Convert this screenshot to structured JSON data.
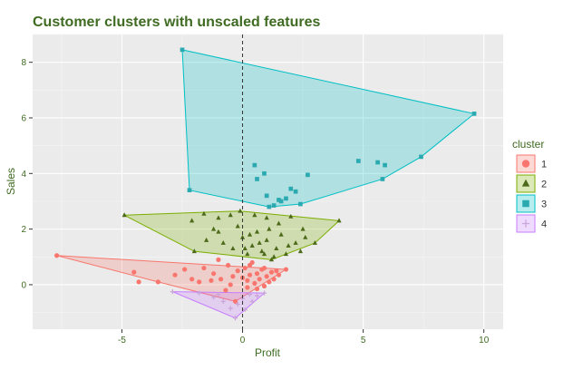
{
  "chart_data": {
    "type": "scatter",
    "title": "Customer clusters with unscaled features",
    "xlabel": "Profit",
    "ylabel": "Sales",
    "xlim": [
      -8.7,
      10.8
    ],
    "ylim": [
      -1.6,
      9.0
    ],
    "x_ticks": [
      -5,
      0,
      5,
      10
    ],
    "y_ticks": [
      0,
      2,
      4,
      6,
      8
    ],
    "grid": true,
    "reference_line": {
      "x": 0,
      "style": "dashed"
    },
    "legend": {
      "title": "cluster",
      "position": "right"
    },
    "series": [
      {
        "name": "1",
        "color": "#F8766D",
        "shape": "circle",
        "hull": [
          [
            -7.7,
            1.05
          ],
          [
            1.8,
            0.55
          ],
          [
            -0.3,
            -0.6
          ],
          [
            -3.5,
            0.1
          ]
        ],
        "points": [
          [
            -7.7,
            1.05
          ],
          [
            -4.3,
            0.1
          ],
          [
            -3.5,
            0.1
          ],
          [
            -4.5,
            0.45
          ],
          [
            -2.8,
            0.35
          ],
          [
            -2.1,
            0.2
          ],
          [
            -1.6,
            0.6
          ],
          [
            -1.2,
            0.4
          ],
          [
            -0.9,
            0.2
          ],
          [
            -0.6,
            0.7
          ],
          [
            -0.5,
            0.0
          ],
          [
            -0.3,
            -0.6
          ],
          [
            -0.2,
            0.5
          ],
          [
            0.0,
            0.25
          ],
          [
            0.1,
            0.6
          ],
          [
            0.2,
            -0.1
          ],
          [
            0.3,
            0.35
          ],
          [
            0.4,
            0.8
          ],
          [
            0.5,
            0.05
          ],
          [
            0.6,
            0.4
          ],
          [
            0.7,
            0.2
          ],
          [
            0.8,
            0.55
          ],
          [
            0.9,
            -0.05
          ],
          [
            1.0,
            0.3
          ],
          [
            1.1,
            0.1
          ],
          [
            1.2,
            0.45
          ],
          [
            1.3,
            0.2
          ],
          [
            1.5,
            0.35
          ],
          [
            1.8,
            0.55
          ],
          [
            -1.0,
            0.9
          ],
          [
            -0.4,
            0.3
          ],
          [
            0.2,
            0.15
          ],
          [
            0.6,
            -0.15
          ],
          [
            -1.8,
            0.1
          ],
          [
            -0.7,
            -0.2
          ],
          [
            0.3,
            0.7
          ],
          [
            0.9,
            0.6
          ],
          [
            1.4,
            0.5
          ],
          [
            -2.4,
            0.55
          ],
          [
            -1.3,
            0.15
          ]
        ]
      },
      {
        "name": "2",
        "color": "#7CAE00",
        "shape": "triangle",
        "hull": [
          [
            -4.9,
            2.5
          ],
          [
            -0.1,
            2.65
          ],
          [
            4.0,
            2.3
          ],
          [
            3.0,
            1.5
          ],
          [
            1.2,
            0.9
          ],
          [
            -2.0,
            1.2
          ]
        ],
        "points": [
          [
            -4.9,
            2.5
          ],
          [
            -2.1,
            2.3
          ],
          [
            -1.6,
            2.55
          ],
          [
            -1.0,
            2.4
          ],
          [
            -0.5,
            2.5
          ],
          [
            -0.1,
            2.65
          ],
          [
            0.5,
            2.5
          ],
          [
            1.0,
            2.4
          ],
          [
            1.5,
            2.2
          ],
          [
            2.0,
            2.45
          ],
          [
            2.5,
            2.0
          ],
          [
            3.0,
            1.5
          ],
          [
            4.0,
            2.3
          ],
          [
            -2.0,
            1.2
          ],
          [
            -1.5,
            1.6
          ],
          [
            -1.0,
            1.9
          ],
          [
            -0.4,
            1.3
          ],
          [
            0.0,
            1.7
          ],
          [
            0.2,
            1.1
          ],
          [
            0.4,
            1.4
          ],
          [
            0.6,
            1.9
          ],
          [
            0.8,
            1.2
          ],
          [
            1.0,
            1.6
          ],
          [
            1.2,
            0.9
          ],
          [
            1.4,
            1.3
          ],
          [
            1.6,
            1.8
          ],
          [
            1.8,
            1.1
          ],
          [
            2.2,
            1.5
          ],
          [
            2.6,
            1.7
          ],
          [
            -0.8,
            1.5
          ],
          [
            -0.2,
            2.1
          ],
          [
            0.3,
            1.8
          ],
          [
            0.7,
            1.5
          ],
          [
            1.1,
            2.0
          ],
          [
            1.3,
            1.0
          ],
          [
            1.9,
            1.4
          ],
          [
            0.1,
            1.3
          ],
          [
            0.9,
            1.1
          ],
          [
            -1.2,
            2.0
          ],
          [
            2.4,
            1.2
          ]
        ]
      },
      {
        "name": "3",
        "color": "#00BFC4",
        "shape": "square",
        "hull": [
          [
            -2.5,
            8.45
          ],
          [
            9.6,
            6.15
          ],
          [
            7.4,
            4.6
          ],
          [
            5.8,
            3.8
          ],
          [
            2.4,
            2.9
          ],
          [
            1.1,
            2.8
          ],
          [
            -2.2,
            3.4
          ]
        ],
        "points": [
          [
            -2.5,
            8.45
          ],
          [
            9.6,
            6.15
          ],
          [
            7.4,
            4.6
          ],
          [
            5.8,
            3.8
          ],
          [
            2.4,
            2.9
          ],
          [
            1.1,
            2.8
          ],
          [
            -2.2,
            3.4
          ],
          [
            0.5,
            4.3
          ],
          [
            0.6,
            3.8
          ],
          [
            1.0,
            3.2
          ],
          [
            1.3,
            2.85
          ],
          [
            1.6,
            3.0
          ],
          [
            1.8,
            3.1
          ],
          [
            2.0,
            3.45
          ],
          [
            2.2,
            3.35
          ],
          [
            2.7,
            3.95
          ],
          [
            4.8,
            4.45
          ],
          [
            5.6,
            4.4
          ],
          [
            5.9,
            4.3
          ],
          [
            0.9,
            4.0
          ],
          [
            1.5,
            3.05
          ]
        ]
      },
      {
        "name": "4",
        "color": "#C77CFF",
        "shape": "cross",
        "hull": [
          [
            -2.9,
            -0.25
          ],
          [
            0.9,
            -0.3
          ],
          [
            -0.3,
            -1.2
          ]
        ],
        "points": [
          [
            -2.9,
            -0.25
          ],
          [
            -1.8,
            -0.3
          ],
          [
            -1.2,
            -0.45
          ],
          [
            -0.8,
            -0.6
          ],
          [
            -0.5,
            -0.85
          ],
          [
            -0.3,
            -1.2
          ],
          [
            0.0,
            -0.5
          ],
          [
            0.3,
            -0.35
          ],
          [
            0.6,
            -0.4
          ],
          [
            0.9,
            -0.3
          ],
          [
            -0.2,
            -0.7
          ],
          [
            0.1,
            -0.9
          ],
          [
            -1.0,
            -0.35
          ],
          [
            0.4,
            -0.6
          ]
        ]
      }
    ]
  }
}
